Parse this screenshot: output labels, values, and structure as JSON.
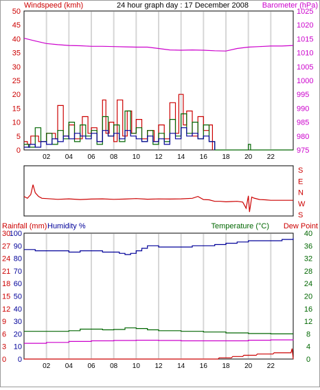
{
  "chart_data": [
    {
      "type": "line",
      "name_panel": "wind-barometer",
      "title": "24 hour graph day : 17 December 2008",
      "left_axis_label": "Windspeed (kmh)",
      "right_axis_label": "Barometer (hPa)",
      "x_ticks": [
        "02",
        "04",
        "06",
        "08",
        "10",
        "12",
        "14",
        "16",
        "18",
        "20",
        "22",
        ""
      ],
      "left_ticks": [
        "0",
        "5",
        "10",
        "15",
        "20",
        "25",
        "30",
        "35",
        "40",
        "45",
        "50"
      ],
      "right_ticks": [
        "975",
        "980",
        "985",
        "990",
        "995",
        "1000",
        "1005",
        "1010",
        "1015",
        "1020",
        "1025"
      ],
      "ylim_left": [
        0,
        50
      ],
      "ylim_right": [
        975,
        1025
      ],
      "grid_x": true,
      "series": [
        {
          "axis": "right",
          "color": "#cc00cc",
          "x": [
            0,
            1,
            2,
            3,
            4,
            5,
            6,
            7,
            8,
            9,
            10,
            11,
            12,
            13,
            14,
            15,
            16,
            17,
            18,
            19,
            20,
            21,
            22,
            23,
            24
          ],
          "values": [
            1015.2,
            1014.2,
            1013.3,
            1012.9,
            1012.6,
            1012.5,
            1012.3,
            1012.3,
            1012.2,
            1012.1,
            1012.0,
            1012.0,
            1011.5,
            1011.0,
            1010.9,
            1011.0,
            1010.9,
            1010.7,
            1010.6,
            1011.5,
            1012.0,
            1012.2,
            1012.4,
            1012.4,
            1012.6
          ]
        },
        {
          "axis": "left",
          "color": "#cc0000",
          "x": [
            0,
            0.3,
            0.6,
            1.3,
            2.0,
            2.8,
            3.0,
            3.5,
            4.0,
            4.5,
            5.2,
            5.7,
            6.0,
            6.5,
            7.0,
            7.3,
            7.6,
            8.0,
            8.3,
            8.8,
            9.2,
            9.6,
            10.0,
            10.5,
            11.0,
            11.6,
            12.0,
            12.5,
            13.0,
            13.5,
            13.8,
            14.2,
            14.5,
            15.0,
            15.5,
            16.0,
            16.5,
            16.8
          ],
          "values": [
            3,
            2,
            5,
            3,
            6,
            4,
            16,
            5,
            9,
            4,
            12,
            6,
            8,
            3,
            18,
            6,
            10,
            3,
            18,
            5,
            14,
            6,
            11,
            4,
            7,
            3,
            9,
            4,
            17,
            6,
            20,
            9,
            14,
            5,
            12,
            7,
            9,
            0
          ]
        },
        {
          "axis": "left",
          "color": "#006600",
          "x": [
            0,
            0.4,
            1.0,
            1.5,
            2.0,
            2.5,
            3.0,
            3.5,
            4.0,
            4.5,
            5.0,
            5.5,
            6.0,
            6.5,
            7.0,
            7.5,
            8.0,
            8.5,
            9.0,
            9.5,
            10.0,
            10.5,
            11.0,
            11.5,
            12.0,
            12.5,
            13.0,
            13.5,
            14.0,
            14.5,
            15.0,
            15.5,
            16.0,
            16.5,
            17.0,
            19.8,
            20.0,
            20.2,
            24
          ],
          "values": [
            2,
            1,
            8,
            3,
            6,
            2,
            7,
            4,
            10,
            3,
            9,
            5,
            7,
            2,
            12,
            5,
            9,
            3,
            14,
            6,
            8,
            3,
            7,
            2,
            6,
            3,
            11,
            5,
            13,
            6,
            10,
            4,
            9,
            3,
            0,
            0,
            2,
            0,
            0
          ]
        },
        {
          "axis": "left",
          "color": "#000099",
          "x": [
            0,
            0.5,
            1.0,
            1.5,
            2.0,
            2.5,
            3.0,
            3.5,
            4.0,
            4.5,
            5.0,
            5.5,
            6.0,
            6.5,
            7.0,
            7.5,
            8.0,
            8.5,
            9.0,
            9.5,
            10.0,
            10.5,
            11.0,
            11.5,
            12.0,
            12.5,
            13.0,
            13.5,
            14.0,
            14.5,
            15.0,
            15.5,
            16.0,
            16.5,
            17.0
          ],
          "values": [
            1,
            2,
            1,
            3,
            2,
            4,
            3,
            5,
            4,
            6,
            5,
            4,
            6,
            3,
            7,
            5,
            6,
            4,
            7,
            5,
            4,
            3,
            5,
            3,
            4,
            2,
            6,
            4,
            8,
            5,
            6,
            4,
            5,
            3,
            0
          ]
        }
      ]
    },
    {
      "type": "line",
      "name_panel": "wind-direction",
      "right_ticks": [
        "S",
        "E",
        "N",
        "W",
        "S"
      ],
      "ylim": [
        0,
        360
      ],
      "series": [
        {
          "color": "#cc0000",
          "x": [
            0,
            0.3,
            0.6,
            0.8,
            1.0,
            1.3,
            1.6,
            2,
            3,
            4,
            5,
            6,
            7,
            8,
            9,
            10,
            11,
            12,
            13,
            14,
            15,
            15.5,
            16,
            16.5,
            17,
            17.5,
            18,
            18.5,
            19,
            19.5,
            19.8,
            20.0,
            20.1,
            20.3,
            20.5,
            21,
            21.5,
            22,
            23,
            24
          ],
          "values": [
            135,
            120,
            150,
            230,
            165,
            135,
            120,
            118,
            112,
            116,
            110,
            114,
            116,
            112,
            114,
            118,
            113,
            115,
            114,
            116,
            120,
            135,
            110,
            108,
            96,
            96,
            92,
            94,
            96,
            90,
            40,
            140,
            10,
            130,
            122,
            110,
            108,
            104,
            104,
            104
          ]
        }
      ]
    },
    {
      "type": "line",
      "name_panel": "rain-humidity-temperature",
      "left_axis_label_1": "Rainfall (mm)",
      "left_axis_label_2": "Humidity %",
      "right_axis_label_1": "Temperature (°C)",
      "right_axis_label_2": "Dew Point",
      "x_ticks": [
        "02",
        "04",
        "06",
        "08",
        "10",
        "12",
        "14",
        "16",
        "18",
        "20",
        "22",
        ""
      ],
      "rain_ticks": [
        "0",
        "3",
        "6",
        "9",
        "12",
        "15",
        "18",
        "21",
        "24",
        "27",
        "30"
      ],
      "humidity_ticks": [
        "0",
        "10",
        "20",
        "30",
        "40",
        "50",
        "60",
        "70",
        "80",
        "90",
        "100"
      ],
      "temp_ticks": [
        "0",
        "4",
        "8",
        "12",
        "16",
        "20",
        "24",
        "28",
        "32",
        "36",
        "40"
      ],
      "ylim_humidity": [
        0,
        100
      ],
      "ylim_temp": [
        0,
        40
      ],
      "series": [
        {
          "axis": "humidity",
          "color": "#000099",
          "x": [
            0,
            1,
            2,
            3,
            4,
            5,
            6,
            7,
            8,
            8.5,
            9,
            9.5,
            10,
            10.5,
            11,
            12,
            13,
            14,
            15,
            16,
            17,
            18,
            19,
            20,
            21,
            22,
            23,
            24
          ],
          "values": [
            87,
            86,
            86,
            86,
            85,
            86,
            86,
            85,
            85,
            84,
            83,
            84,
            86,
            88,
            90,
            89,
            89,
            89,
            90,
            90,
            91,
            92,
            93,
            94,
            94,
            94,
            95,
            96
          ]
        },
        {
          "axis": "temp",
          "color": "#006600",
          "x": [
            0,
            2,
            4,
            5,
            6,
            7,
            8,
            9,
            10,
            11,
            12,
            14,
            16,
            18,
            20,
            22,
            24
          ],
          "values": [
            8.8,
            8.8,
            9.0,
            9.5,
            9.5,
            9.3,
            9.4,
            9.9,
            9.7,
            9.3,
            9.0,
            8.8,
            8.6,
            8.3,
            8.1,
            8.0,
            8.0
          ]
        },
        {
          "axis": "temp",
          "color": "#cc00cc",
          "x": [
            0,
            2,
            4,
            6,
            8,
            10,
            12,
            14,
            16,
            18,
            20,
            22,
            24
          ],
          "values": [
            5.0,
            5.3,
            5.6,
            5.8,
            5.9,
            6.0,
            5.9,
            5.8,
            5.8,
            5.8,
            6.0,
            6.1,
            6.2
          ]
        },
        {
          "axis": "rain",
          "color": "#cc0000",
          "x": [
            0,
            17.3,
            17.4,
            18.5,
            18.6,
            19.5,
            19.6,
            20.7,
            20.8,
            22.2,
            22.3,
            23.8,
            23.9,
            24
          ],
          "values": [
            0,
            0,
            0.3,
            0.3,
            0.6,
            0.6,
            0.9,
            0.9,
            1.2,
            1.2,
            1.5,
            1.5,
            2.5,
            0
          ]
        }
      ]
    }
  ],
  "colors": {
    "grid": "#d6d6d6",
    "axis": "#000000",
    "wind_label": "#cc0000",
    "baro_label": "#cc00cc",
    "humidity_label": "#000099",
    "temp_label": "#006600",
    "dew_label": "#cc0000"
  }
}
